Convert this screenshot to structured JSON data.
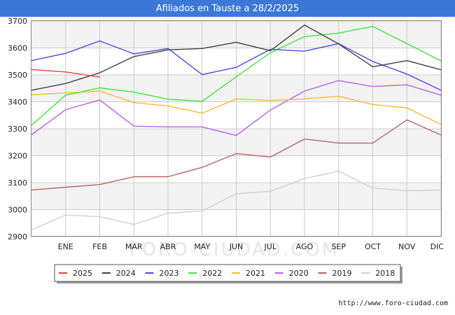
{
  "header": {
    "title": "Afiliados en Tauste a 28/2/2025"
  },
  "watermark": "FORO-CIUDAD.COM",
  "source_url": "http://www.foro-ciudad.com",
  "colors": {
    "title_bar": "#3c78d8",
    "background": "#ffffff",
    "band": "#f2f2f2",
    "grid": "#cccccc"
  },
  "chart_data": {
    "type": "line",
    "title": "Afiliados en Tauste a 28/2/2025",
    "categories": [
      "",
      "ENE",
      "FEB",
      "MAR",
      "ABR",
      "MAY",
      "JUN",
      "JUL",
      "AGO",
      "SEP",
      "OCT",
      "NOV",
      "DIC"
    ],
    "ylim": [
      2900,
      3700
    ],
    "yticks": [
      2900,
      3000,
      3100,
      3200,
      3300,
      3400,
      3500,
      3600,
      3700
    ],
    "grid": true,
    "legend_position": "bottom",
    "series": [
      {
        "name": "2025",
        "color": "#e8413c",
        "values": [
          3520,
          3511,
          3492,
          null,
          null,
          null,
          null,
          null,
          null,
          null,
          null,
          null,
          null
        ]
      },
      {
        "name": "2024",
        "color": "#404040",
        "values": [
          3443,
          3468,
          3508,
          3568,
          3593,
          3598,
          3621,
          3590,
          3685,
          3615,
          3530,
          3553,
          3519
        ]
      },
      {
        "name": "2023",
        "color": "#4a4ae6",
        "values": [
          3553,
          3580,
          3626,
          3578,
          3598,
          3501,
          3528,
          3595,
          3588,
          3616,
          3550,
          3503,
          3443
        ]
      },
      {
        "name": "2022",
        "color": "#3ee63e",
        "values": [
          3313,
          3425,
          3452,
          3436,
          3410,
          3402,
          3493,
          3582,
          3642,
          3655,
          3680,
          3616,
          3552
        ]
      },
      {
        "name": "2021",
        "color": "#ffb732",
        "values": [
          3426,
          3433,
          3440,
          3397,
          3385,
          3358,
          3411,
          3405,
          3411,
          3421,
          3390,
          3378,
          3316
        ]
      },
      {
        "name": "2020",
        "color": "#b763e6",
        "values": [
          3278,
          3371,
          3407,
          3310,
          3307,
          3307,
          3275,
          3370,
          3440,
          3479,
          3457,
          3463,
          3425
        ]
      },
      {
        "name": "2019",
        "color": "#b76565",
        "values": [
          3073,
          3083,
          3093,
          3122,
          3122,
          3157,
          3208,
          3195,
          3262,
          3247,
          3247,
          3333,
          3277
        ]
      },
      {
        "name": "2018",
        "color": "#d0d0d0",
        "values": [
          2925,
          2980,
          2974,
          2945,
          2987,
          2995,
          3059,
          3068,
          3115,
          3143,
          3080,
          3070,
          3073
        ]
      }
    ]
  }
}
